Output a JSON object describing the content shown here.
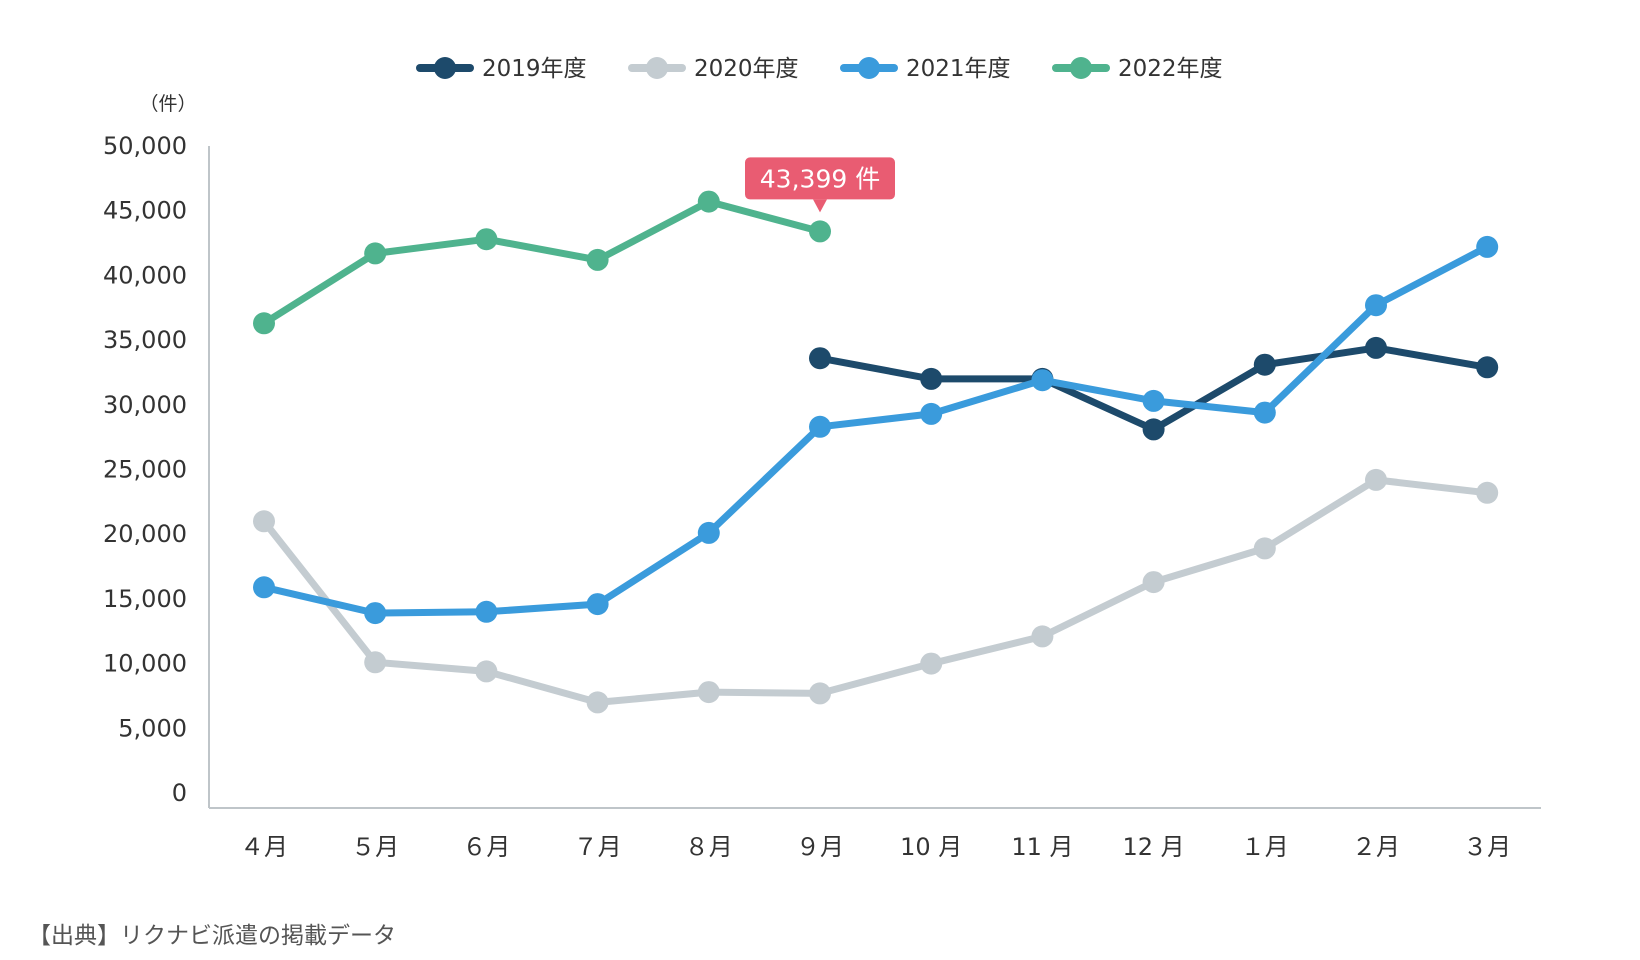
{
  "chart_data": {
    "type": "line",
    "title": "",
    "xlabel": "",
    "ylabel": "",
    "unit_label": "（件）",
    "categories": [
      "４月",
      "５月",
      "６月",
      "７月",
      "８月",
      "９月",
      "10 月",
      "11 月",
      "12 月",
      "１月",
      "２月",
      "３月"
    ],
    "ylim": [
      0,
      50000
    ],
    "yticks": [
      0,
      5000,
      10000,
      15000,
      20000,
      25000,
      30000,
      35000,
      40000,
      45000,
      50000
    ],
    "ytick_labels": [
      "0",
      "5,000",
      "10,000",
      "15,000",
      "20,000",
      "25,000",
      "30,000",
      "35,000",
      "40,000",
      "45,000",
      "50,000"
    ],
    "grid": false,
    "legend_position": "top-center",
    "series": [
      {
        "name": "2019年度",
        "color": "#1d4a6b",
        "values": [
          null,
          null,
          null,
          null,
          null,
          33600,
          32000,
          32000,
          28100,
          33100,
          34400,
          32900
        ]
      },
      {
        "name": "2020年度",
        "color": "#c4ccd1",
        "values": [
          21000,
          10100,
          9400,
          7000,
          7800,
          7700,
          10000,
          12100,
          16300,
          18900,
          24200,
          23200
        ]
      },
      {
        "name": "2021年度",
        "color": "#3a9bdc",
        "values": [
          15900,
          13900,
          14000,
          14600,
          20100,
          28300,
          29300,
          31900,
          30300,
          29400,
          37700,
          42200
        ]
      },
      {
        "name": "2022年度",
        "color": "#4fb38e",
        "values": [
          36300,
          41700,
          42800,
          41200,
          45700,
          43399,
          null,
          null,
          null,
          null,
          null,
          null
        ]
      }
    ],
    "annotation": {
      "text": "43,399 件",
      "series": "2022年度",
      "category": "９月",
      "color": "#e95c72"
    },
    "source": "【出典】リクナビ派遣の掲載データ"
  }
}
